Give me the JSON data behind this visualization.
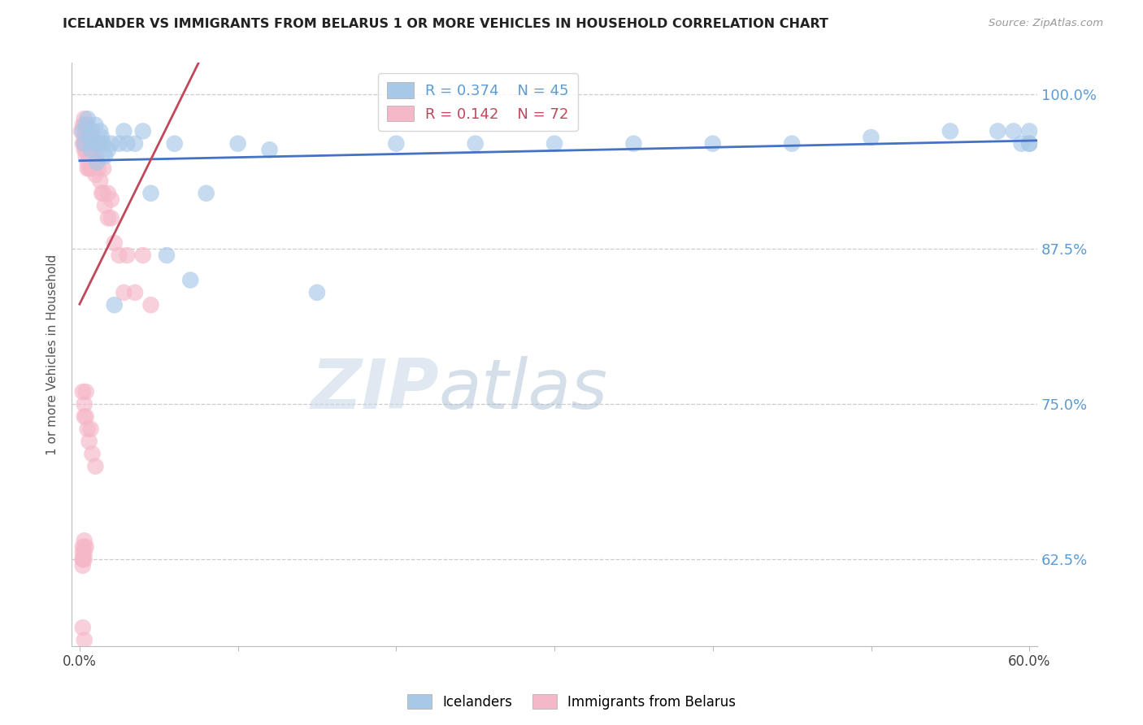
{
  "title": "ICELANDER VS IMMIGRANTS FROM BELARUS 1 OR MORE VEHICLES IN HOUSEHOLD CORRELATION CHART",
  "source": "Source: ZipAtlas.com",
  "ylabel": "1 or more Vehicles in Household",
  "legend_icelander": "Icelanders",
  "legend_belarus": "Immigrants from Belarus",
  "r_icelander": 0.374,
  "n_icelander": 45,
  "r_belarus": 0.142,
  "n_belarus": 72,
  "color_icelander": "#a8c8e8",
  "color_belarus": "#f5b8c8",
  "line_color_icelander": "#4472c4",
  "line_color_belarus": "#c0485a",
  "xlim": [
    -0.005,
    0.605
  ],
  "ylim": [
    0.555,
    1.025
  ],
  "yticks": [
    0.625,
    0.75,
    0.875,
    1.0
  ],
  "ytick_labels": [
    "62.5%",
    "75.0%",
    "87.5%",
    "100.0%"
  ],
  "xticks": [
    0.0,
    0.1,
    0.2,
    0.3,
    0.4,
    0.5,
    0.6
  ],
  "xtick_labels": [
    "0.0%",
    "",
    "",
    "",
    "",
    "",
    "60.0%"
  ],
  "watermark_zip": "ZIP",
  "watermark_atlas": "atlas",
  "icelander_x": [
    0.002,
    0.003,
    0.004,
    0.005,
    0.006,
    0.007,
    0.008,
    0.009,
    0.01,
    0.011,
    0.012,
    0.013,
    0.014,
    0.015,
    0.016,
    0.018,
    0.02,
    0.022,
    0.025,
    0.028,
    0.03,
    0.035,
    0.04,
    0.045,
    0.055,
    0.06,
    0.07,
    0.08,
    0.1,
    0.12,
    0.15,
    0.2,
    0.25,
    0.3,
    0.35,
    0.4,
    0.45,
    0.5,
    0.55,
    0.58,
    0.59,
    0.595,
    0.6,
    0.6,
    0.6
  ],
  "icelander_y": [
    0.97,
    0.96,
    0.975,
    0.98,
    0.965,
    0.955,
    0.97,
    0.96,
    0.975,
    0.945,
    0.96,
    0.97,
    0.965,
    0.96,
    0.95,
    0.955,
    0.96,
    0.83,
    0.96,
    0.97,
    0.96,
    0.96,
    0.97,
    0.92,
    0.87,
    0.96,
    0.85,
    0.92,
    0.96,
    0.955,
    0.84,
    0.96,
    0.96,
    0.96,
    0.96,
    0.96,
    0.96,
    0.965,
    0.97,
    0.97,
    0.97,
    0.96,
    0.97,
    0.96,
    0.96
  ],
  "belarus_x": [
    0.001,
    0.002,
    0.002,
    0.003,
    0.003,
    0.003,
    0.003,
    0.003,
    0.004,
    0.004,
    0.004,
    0.004,
    0.005,
    0.005,
    0.005,
    0.005,
    0.005,
    0.006,
    0.006,
    0.006,
    0.007,
    0.007,
    0.007,
    0.008,
    0.008,
    0.008,
    0.009,
    0.009,
    0.01,
    0.01,
    0.01,
    0.011,
    0.012,
    0.012,
    0.013,
    0.014,
    0.015,
    0.015,
    0.016,
    0.018,
    0.018,
    0.02,
    0.02,
    0.022,
    0.025,
    0.028,
    0.03,
    0.035,
    0.04,
    0.045,
    0.002,
    0.003,
    0.003,
    0.004,
    0.004,
    0.005,
    0.006,
    0.007,
    0.008,
    0.01,
    0.002,
    0.003,
    0.003,
    0.004,
    0.002,
    0.003,
    0.002,
    0.002,
    0.003,
    0.002,
    0.002,
    0.003
  ],
  "belarus_y": [
    0.97,
    0.975,
    0.96,
    0.98,
    0.975,
    0.965,
    0.96,
    0.955,
    0.97,
    0.96,
    0.955,
    0.95,
    0.975,
    0.965,
    0.955,
    0.945,
    0.94,
    0.96,
    0.95,
    0.94,
    0.965,
    0.95,
    0.94,
    0.96,
    0.95,
    0.94,
    0.955,
    0.945,
    0.96,
    0.95,
    0.935,
    0.945,
    0.96,
    0.94,
    0.93,
    0.92,
    0.94,
    0.92,
    0.91,
    0.9,
    0.92,
    0.915,
    0.9,
    0.88,
    0.87,
    0.84,
    0.87,
    0.84,
    0.87,
    0.83,
    0.76,
    0.75,
    0.74,
    0.76,
    0.74,
    0.73,
    0.72,
    0.73,
    0.71,
    0.7,
    0.635,
    0.64,
    0.63,
    0.635,
    0.625,
    0.635,
    0.625,
    0.63,
    0.625,
    0.62,
    0.57,
    0.56
  ]
}
